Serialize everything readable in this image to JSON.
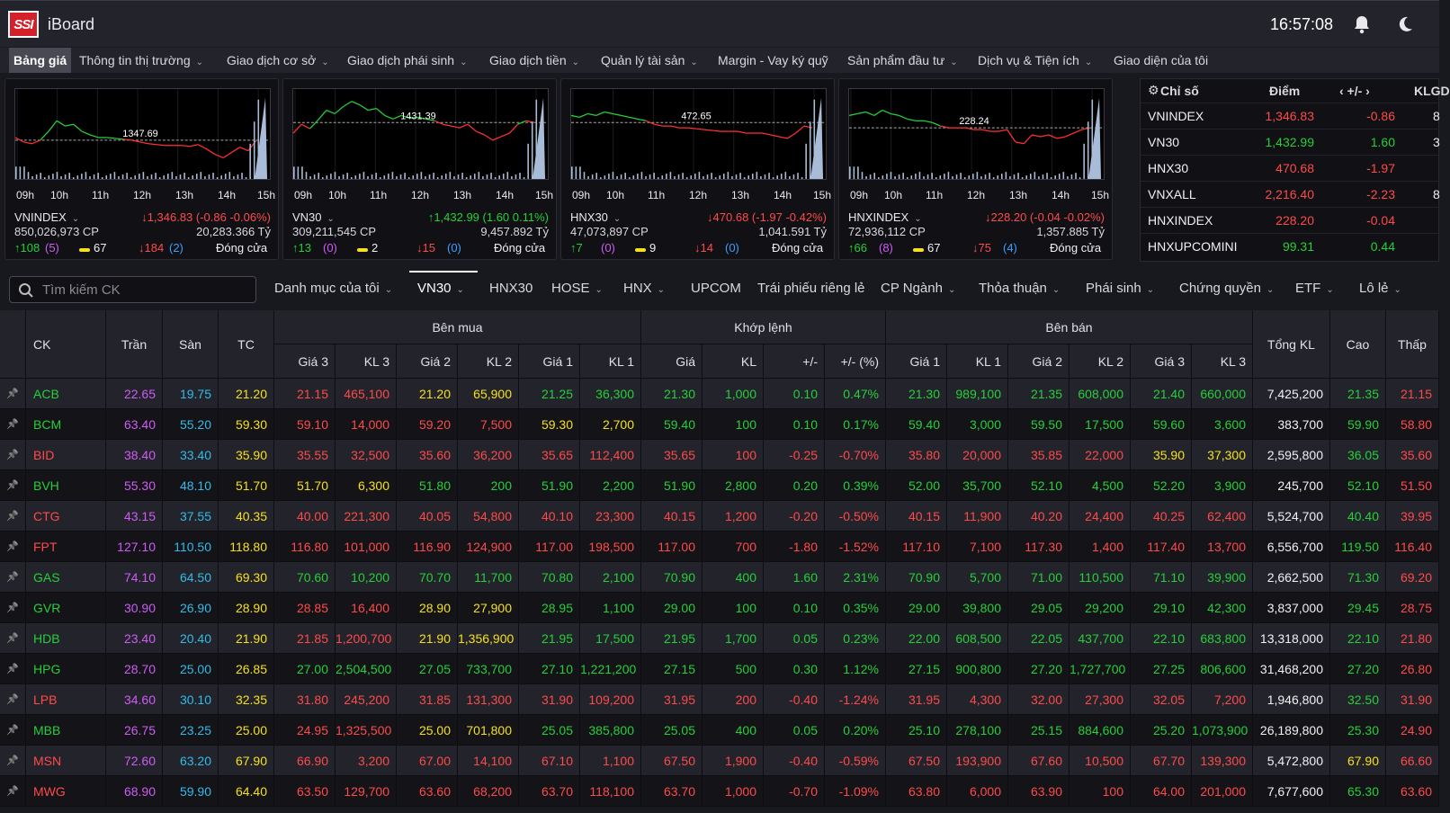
{
  "header": {
    "logo": "SSI",
    "app": "iBoard",
    "time": "16:57:08"
  },
  "menu": [
    "Bảng giá",
    "Thông tin thị trường",
    "Giao dịch cơ sở",
    "Giao dịch phái sinh",
    "Giao dịch tiền",
    "Quản lý tài sản",
    "Margin - Vay ký quỹ",
    "Sản phẩm đầu tư",
    "Dịch vụ & Tiện ích",
    "Giao diện của tôi"
  ],
  "hours": [
    "09h",
    "10h",
    "11h",
    "12h",
    "13h",
    "14h",
    "15h"
  ],
  "cards": [
    {
      "name": "VNINDEX",
      "ref": "1347.69",
      "value": "↓1,346.83 (-0.86 -0.06%)",
      "dir": "down",
      "cp": "850,026,973 CP",
      "ty": "20,283.366 Tỷ",
      "up": "↑108",
      "upn": "(5)",
      "nc": "67",
      "down": "↓184",
      "downn": "(2)",
      "status": "Đóng cửa"
    },
    {
      "name": "VN30",
      "ref": "1431.39",
      "value": "↑1,432.99 (1.60 0.11%)",
      "dir": "up",
      "cp": "309,211,545 CP",
      "ty": "9,457.892 Tỷ",
      "up": "↑13",
      "upn": "(0)",
      "nc": "2",
      "down": "↓15",
      "downn": "(0)",
      "status": "Đóng cửa"
    },
    {
      "name": "HNX30",
      "ref": "472.65",
      "value": "↓470.68 (-1.97 -0.42%)",
      "dir": "down",
      "cp": "47,073,897 CP",
      "ty": "1,041.591 Tỷ",
      "up": "↑7",
      "upn": "(0)",
      "nc": "9",
      "down": "↓14",
      "downn": "(0)",
      "status": "Đóng cửa"
    },
    {
      "name": "HNXINDEX",
      "ref": "228.24",
      "value": "↓228.20 (-0.04 -0.02%)",
      "dir": "down",
      "cp": "72,936,112 CP",
      "ty": "1,357.885 Tỷ",
      "up": "↑66",
      "upn": "(8)",
      "nc": "67",
      "down": "↓75",
      "downn": "(4)",
      "status": "Đóng cửa"
    }
  ],
  "index_panel": {
    "headers": [
      "Chỉ số",
      "Điểm",
      "‹ +/- ›",
      "KLGD"
    ],
    "rows": [
      [
        "VNINDEX",
        "1,346.83",
        "-0.86",
        "r"
      ],
      [
        "VN30",
        "1,432.99",
        "1.60",
        "g"
      ],
      [
        "HNX30",
        "470.68",
        "-1.97",
        "r"
      ],
      [
        "VNXALL",
        "2,216.40",
        "-2.23",
        "r"
      ],
      [
        "HNXINDEX",
        "228.20",
        "-0.04",
        "r"
      ],
      [
        "HNXUPCOMINI",
        "99.31",
        "0.44",
        "g"
      ]
    ],
    "klgd": [
      "8",
      "3",
      "",
      "8",
      "",
      ""
    ]
  },
  "search": {
    "placeholder": "Tìm kiếm CK"
  },
  "tabs": [
    "Danh mục của tôi",
    "VN30",
    "HNX30",
    "HOSE",
    "HNX",
    "UPCOM",
    "Trái phiếu riêng lẻ",
    "CP Ngành",
    "Thỏa thuận",
    "Phái sinh",
    "Chứng quyền",
    "ETF",
    "Lô lẻ"
  ],
  "table_headers": {
    "ck": "CK",
    "tran": "Trần",
    "san": "Sàn",
    "tc": "TC",
    "ben_mua": "Bên mua",
    "khop_lenh": "Khớp lệnh",
    "ben_ban": "Bên bán",
    "tong_kl": "Tổng KL",
    "cao": "Cao",
    "thap": "Thấp",
    "sub": [
      "Giá 3",
      "KL 3",
      "Giá 2",
      "KL 2",
      "Giá 1",
      "KL 1",
      "Giá",
      "KL",
      "+/-",
      "+/- (%)",
      "Giá 1",
      "KL 1",
      "Giá 2",
      "KL 2",
      "Giá 3",
      "KL 3"
    ]
  },
  "rows": [
    {
      "sym": "ACB",
      "c": "g",
      "v": [
        "22.65",
        "19.75",
        "21.20",
        "21.15",
        "465,100",
        "21.20",
        "65,900",
        "21.25",
        "36,300",
        "21.30",
        "1,000",
        "0.10",
        "0.47%",
        "21.30",
        "989,100",
        "21.35",
        "608,000",
        "21.40",
        "660,000",
        "7,425,200",
        "21.35",
        "21.15"
      ],
      "k": "rrywyygg ggggg gggggg w g r"
    },
    {
      "sym": "BCM",
      "c": "g",
      "v": [
        "63.40",
        "55.20",
        "59.30",
        "59.10",
        "14,000",
        "59.20",
        "7,500",
        "59.30",
        "2,700",
        "59.40",
        "100",
        "0.10",
        "0.17%",
        "59.40",
        "3,000",
        "59.50",
        "17,500",
        "59.60",
        "3,600",
        "383,700",
        "59.90",
        "58.80"
      ],
      "k": ""
    },
    {
      "sym": "BID",
      "c": "r",
      "v": [
        "38.40",
        "33.40",
        "35.90",
        "35.55",
        "32,500",
        "35.60",
        "36,200",
        "35.65",
        "112,400",
        "35.65",
        "100",
        "-0.25",
        "-0.70%",
        "35.80",
        "20,000",
        "35.85",
        "22,000",
        "35.90",
        "37,300",
        "2,595,800",
        "36.05",
        "35.60"
      ],
      "k": ""
    },
    {
      "sym": "BVH",
      "c": "g",
      "v": [
        "55.30",
        "48.10",
        "51.70",
        "51.70",
        "6,300",
        "51.80",
        "200",
        "51.90",
        "2,200",
        "51.90",
        "2,800",
        "0.20",
        "0.39%",
        "52.00",
        "35,700",
        "52.10",
        "4,500",
        "52.20",
        "3,900",
        "245,700",
        "52.10",
        "51.50"
      ],
      "k": ""
    },
    {
      "sym": "CTG",
      "c": "r",
      "v": [
        "43.15",
        "37.55",
        "40.35",
        "40.00",
        "221,300",
        "40.05",
        "54,800",
        "40.10",
        "23,300",
        "40.15",
        "1,200",
        "-0.20",
        "-0.50%",
        "40.15",
        "11,900",
        "40.20",
        "24,400",
        "40.25",
        "62,400",
        "5,524,700",
        "40.40",
        "39.95"
      ],
      "k": ""
    },
    {
      "sym": "FPT",
      "c": "r",
      "v": [
        "127.10",
        "110.50",
        "118.80",
        "116.80",
        "101,000",
        "116.90",
        "124,900",
        "117.00",
        "198,500",
        "117.00",
        "700",
        "-1.80",
        "-1.52%",
        "117.10",
        "7,100",
        "117.30",
        "1,400",
        "117.40",
        "13,700",
        "6,556,700",
        "119.50",
        "116.40"
      ],
      "k": ""
    },
    {
      "sym": "GAS",
      "c": "g",
      "v": [
        "74.10",
        "64.50",
        "69.30",
        "70.60",
        "10,200",
        "70.70",
        "11,700",
        "70.80",
        "2,100",
        "70.90",
        "400",
        "1.60",
        "2.31%",
        "70.90",
        "5,700",
        "71.00",
        "110,500",
        "71.10",
        "39,900",
        "2,662,500",
        "71.30",
        "69.20"
      ],
      "k": ""
    },
    {
      "sym": "GVR",
      "c": "g",
      "v": [
        "30.90",
        "26.90",
        "28.90",
        "28.85",
        "16,400",
        "28.90",
        "27,900",
        "28.95",
        "1,100",
        "29.00",
        "100",
        "0.10",
        "0.35%",
        "29.00",
        "39,800",
        "29.05",
        "29,200",
        "29.10",
        "42,300",
        "3,837,000",
        "29.45",
        "28.75"
      ],
      "k": ""
    },
    {
      "sym": "HDB",
      "c": "g",
      "v": [
        "23.40",
        "20.40",
        "21.90",
        "21.85",
        "1,200,700",
        "21.90",
        "1,356,900",
        "21.95",
        "17,500",
        "21.95",
        "1,700",
        "0.05",
        "0.23%",
        "22.00",
        "608,500",
        "22.05",
        "437,700",
        "22.10",
        "683,800",
        "13,318,000",
        "22.10",
        "21.80"
      ],
      "k": ""
    },
    {
      "sym": "HPG",
      "c": "g",
      "v": [
        "28.70",
        "25.00",
        "26.85",
        "27.00",
        "2,504,500",
        "27.05",
        "733,700",
        "27.10",
        "1,221,200",
        "27.15",
        "500",
        "0.30",
        "1.12%",
        "27.15",
        "900,800",
        "27.20",
        "1,727,700",
        "27.25",
        "806,600",
        "31,468,200",
        "27.20",
        "26.80"
      ],
      "k": ""
    },
    {
      "sym": "LPB",
      "c": "r",
      "v": [
        "34.60",
        "30.10",
        "32.35",
        "31.80",
        "245,200",
        "31.85",
        "131,300",
        "31.90",
        "109,200",
        "31.95",
        "200",
        "-0.40",
        "-1.24%",
        "31.95",
        "4,300",
        "32.00",
        "27,300",
        "32.05",
        "7,200",
        "1,946,800",
        "32.50",
        "31.90"
      ],
      "k": ""
    },
    {
      "sym": "MBB",
      "c": "g",
      "v": [
        "26.75",
        "23.25",
        "25.00",
        "24.95",
        "1,325,500",
        "25.00",
        "701,800",
        "25.05",
        "385,800",
        "25.05",
        "400",
        "0.05",
        "0.20%",
        "25.10",
        "278,100",
        "25.15",
        "884,600",
        "25.20",
        "1,073,900",
        "26,189,800",
        "25.30",
        "24.90"
      ],
      "k": ""
    },
    {
      "sym": "MSN",
      "c": "r",
      "v": [
        "72.60",
        "63.20",
        "67.90",
        "66.90",
        "3,200",
        "67.00",
        "14,100",
        "67.10",
        "1,100",
        "67.50",
        "1,900",
        "-0.40",
        "-0.59%",
        "67.50",
        "193,900",
        "67.60",
        "10,500",
        "67.70",
        "139,300",
        "5,472,800",
        "67.90",
        "66.60"
      ],
      "k": ""
    },
    {
      "sym": "MWG",
      "c": "r",
      "v": [
        "68.90",
        "59.90",
        "64.40",
        "63.50",
        "129,700",
        "63.60",
        "68,200",
        "63.70",
        "118,100",
        "63.70",
        "1,000",
        "-0.70",
        "-1.09%",
        "63.80",
        "6,000",
        "63.90",
        "100",
        "64.00",
        "201,000",
        "7,677,600",
        "65.30",
        "63.60"
      ],
      "k": ""
    }
  ],
  "row_colors": [
    [
      "r",
      "r",
      "y",
      "y",
      "g",
      "g",
      "g",
      "g",
      "g",
      "g",
      "g",
      "g",
      "g",
      "g",
      "g",
      "g",
      "w",
      "g",
      "r"
    ],
    [
      "r",
      "r",
      "r",
      "r",
      "y",
      "y",
      "g",
      "g",
      "g",
      "g",
      "g",
      "g",
      "g",
      "g",
      "g",
      "g",
      "w",
      "g",
      "r"
    ],
    [
      "r",
      "r",
      "r",
      "r",
      "r",
      "r",
      "r",
      "r",
      "r",
      "r",
      "r",
      "r",
      "r",
      "r",
      "y",
      "y",
      "w",
      "g",
      "r"
    ],
    [
      "y",
      "y",
      "g",
      "g",
      "g",
      "g",
      "g",
      "g",
      "g",
      "g",
      "g",
      "g",
      "g",
      "g",
      "g",
      "g",
      "w",
      "g",
      "r"
    ],
    [
      "r",
      "r",
      "r",
      "r",
      "r",
      "r",
      "r",
      "r",
      "r",
      "r",
      "r",
      "r",
      "r",
      "r",
      "r",
      "r",
      "w",
      "g",
      "r"
    ],
    [
      "r",
      "r",
      "r",
      "r",
      "r",
      "r",
      "r",
      "r",
      "r",
      "r",
      "r",
      "r",
      "r",
      "r",
      "r",
      "r",
      "w",
      "g",
      "r"
    ],
    [
      "g",
      "g",
      "g",
      "g",
      "g",
      "g",
      "g",
      "g",
      "g",
      "g",
      "g",
      "g",
      "g",
      "g",
      "g",
      "g",
      "w",
      "g",
      "r"
    ],
    [
      "r",
      "r",
      "y",
      "y",
      "g",
      "g",
      "g",
      "g",
      "g",
      "g",
      "g",
      "g",
      "g",
      "g",
      "g",
      "g",
      "w",
      "g",
      "r"
    ],
    [
      "r",
      "r",
      "y",
      "y",
      "g",
      "g",
      "g",
      "g",
      "g",
      "g",
      "g",
      "g",
      "g",
      "g",
      "g",
      "g",
      "w",
      "g",
      "r"
    ],
    [
      "g",
      "g",
      "g",
      "g",
      "g",
      "g",
      "g",
      "g",
      "g",
      "g",
      "g",
      "g",
      "g",
      "g",
      "g",
      "g",
      "w",
      "g",
      "r"
    ],
    [
      "r",
      "r",
      "r",
      "r",
      "r",
      "r",
      "r",
      "r",
      "r",
      "r",
      "r",
      "r",
      "r",
      "r",
      "r",
      "r",
      "w",
      "g",
      "r"
    ],
    [
      "r",
      "r",
      "y",
      "y",
      "g",
      "g",
      "g",
      "g",
      "g",
      "g",
      "g",
      "g",
      "g",
      "g",
      "g",
      "g",
      "w",
      "g",
      "r"
    ],
    [
      "r",
      "r",
      "r",
      "r",
      "r",
      "r",
      "r",
      "r",
      "r",
      "r",
      "r",
      "r",
      "r",
      "r",
      "r",
      "r",
      "w",
      "y",
      "r"
    ],
    [
      "r",
      "r",
      "r",
      "r",
      "r",
      "r",
      "r",
      "r",
      "r",
      "r",
      "r",
      "r",
      "r",
      "r",
      "r",
      "r",
      "w",
      "g",
      "r"
    ]
  ],
  "colors": {
    "green": "#25d038",
    "red": "#ff4a4a",
    "yellow": "#f5e11b",
    "purple": "#cf5cf5",
    "cyan": "#33bbe8"
  }
}
